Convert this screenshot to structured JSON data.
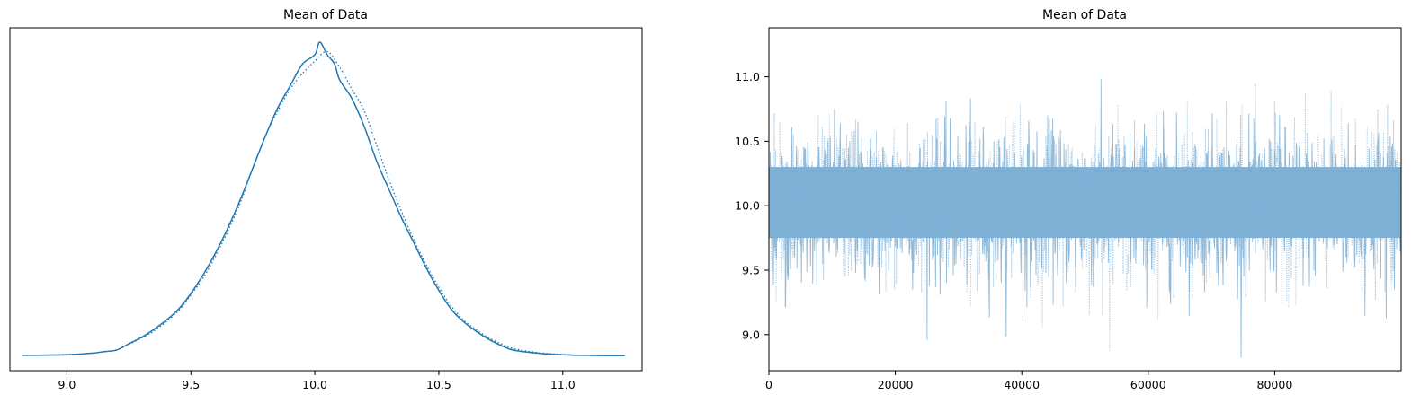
{
  "chart_data": [
    {
      "type": "line",
      "title": "Mean of Data",
      "xlabel": "",
      "ylabel": "",
      "xlim": [
        8.77,
        11.32
      ],
      "ylim": [
        0,
        1.0
      ],
      "x_ticks": [
        9.0,
        9.5,
        10.0,
        10.5,
        11.0
      ],
      "x_tick_labels": [
        "9.0",
        "9.5",
        "10.0",
        "10.5",
        "11.0"
      ],
      "y_ticks": [],
      "grid": false,
      "legend": "none",
      "series": [
        {
          "style": "solid",
          "color": "#1f77b4",
          "x": [
            8.82,
            9.0,
            9.1,
            9.15,
            9.2,
            9.25,
            9.3,
            9.35,
            9.4,
            9.45,
            9.5,
            9.55,
            9.6,
            9.65,
            9.7,
            9.75,
            9.8,
            9.85,
            9.9,
            9.95,
            10.0,
            10.02,
            10.05,
            10.08,
            10.1,
            10.15,
            10.2,
            10.25,
            10.3,
            10.35,
            10.4,
            10.45,
            10.5,
            10.55,
            10.6,
            10.65,
            10.7,
            10.75,
            10.8,
            10.9,
            11.0,
            11.1,
            11.25
          ],
          "y": [
            0.003,
            0.005,
            0.01,
            0.015,
            0.02,
            0.04,
            0.06,
            0.085,
            0.115,
            0.15,
            0.2,
            0.26,
            0.33,
            0.41,
            0.5,
            0.6,
            0.7,
            0.79,
            0.86,
            0.93,
            0.96,
            1.0,
            0.96,
            0.93,
            0.88,
            0.82,
            0.73,
            0.62,
            0.53,
            0.44,
            0.36,
            0.28,
            0.21,
            0.15,
            0.11,
            0.08,
            0.055,
            0.035,
            0.02,
            0.01,
            0.005,
            0.003,
            0.002
          ]
        },
        {
          "style": "dotted",
          "color": "#1f77b4",
          "x": [
            8.82,
            9.0,
            9.1,
            9.15,
            9.2,
            9.25,
            9.3,
            9.35,
            9.4,
            9.45,
            9.5,
            9.55,
            9.6,
            9.65,
            9.7,
            9.75,
            9.8,
            9.85,
            9.9,
            9.95,
            10.0,
            10.05,
            10.1,
            10.15,
            10.2,
            10.25,
            10.3,
            10.35,
            10.4,
            10.45,
            10.5,
            10.55,
            10.6,
            10.65,
            10.7,
            10.75,
            10.8,
            10.9,
            11.0,
            11.1,
            11.25
          ],
          "y": [
            0.003,
            0.006,
            0.01,
            0.015,
            0.02,
            0.038,
            0.058,
            0.08,
            0.11,
            0.145,
            0.195,
            0.25,
            0.32,
            0.4,
            0.49,
            0.6,
            0.7,
            0.78,
            0.85,
            0.9,
            0.94,
            0.97,
            0.92,
            0.85,
            0.78,
            0.67,
            0.56,
            0.46,
            0.37,
            0.29,
            0.22,
            0.16,
            0.115,
            0.085,
            0.06,
            0.04,
            0.025,
            0.012,
            0.006,
            0.003,
            0.002
          ]
        }
      ]
    },
    {
      "type": "line",
      "title": "Mean of Data",
      "xlabel": "",
      "ylabel": "",
      "xlim": [
        0,
        99999
      ],
      "ylim": [
        8.72,
        11.38
      ],
      "x_ticks": [
        0,
        20000,
        40000,
        60000,
        80000
      ],
      "x_tick_labels": [
        "0",
        "20000",
        "40000",
        "60000",
        "80000"
      ],
      "y_ticks": [
        9.0,
        9.5,
        10.0,
        10.5,
        11.0
      ],
      "y_tick_labels": [
        "9.0",
        "9.5",
        "10.0",
        "10.5",
        "11.0"
      ],
      "grid": false,
      "legend": "none",
      "trace": {
        "n_draws": 100000,
        "mean": 10.0,
        "sd": 0.3,
        "band_min": 9.75,
        "band_max": 10.3,
        "extreme_min": 8.82,
        "extreme_max": 11.26
      },
      "series": [
        {
          "style": "solid",
          "color": "#7fb0d5"
        },
        {
          "style": "dotted",
          "color": "#7fb0d5"
        }
      ]
    }
  ]
}
